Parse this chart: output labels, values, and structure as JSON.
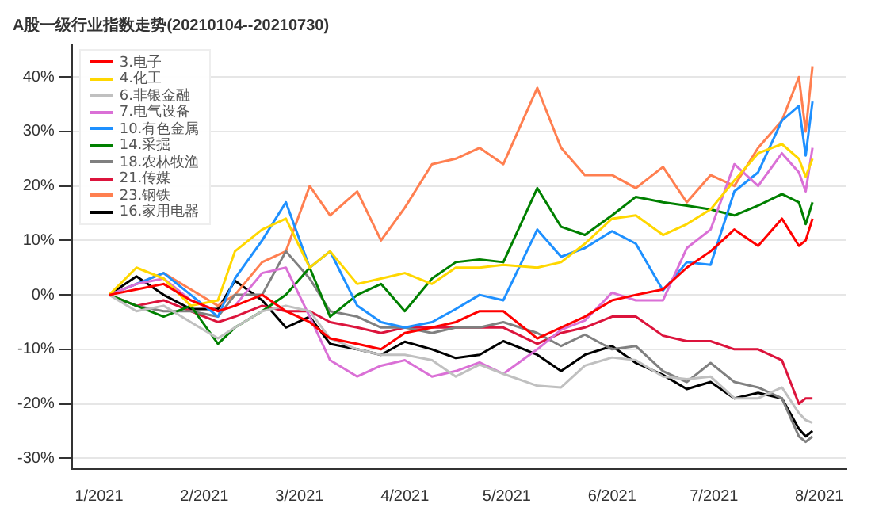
{
  "chart_data": {
    "type": "line",
    "title": "A股一级行业指数走势(20210104--20210730)",
    "x": [
      "2021-01-04",
      "2021-01-12",
      "2021-01-20",
      "2021-01-28",
      "2021-02-05",
      "2021-02-10",
      "2021-02-18",
      "2021-02-25",
      "2021-03-04",
      "2021-03-10",
      "2021-03-18",
      "2021-03-25",
      "2021-04-01",
      "2021-04-09",
      "2021-04-16",
      "2021-04-23",
      "2021-04-30",
      "2021-05-10",
      "2021-05-17",
      "2021-05-24",
      "2021-06-01",
      "2021-06-08",
      "2021-06-16",
      "2021-06-23",
      "2021-06-30",
      "2021-07-07",
      "2021-07-14",
      "2021-07-21",
      "2021-07-26",
      "2021-07-28",
      "2021-07-30"
    ],
    "series": [
      {
        "name": "3.电子",
        "color": "#ff0000",
        "values": [
          0,
          1,
          2,
          -1,
          -3,
          -2,
          0,
          -3,
          -5,
          -8,
          -9,
          -10,
          -7,
          -6,
          -5,
          -3,
          -3,
          -8,
          -6,
          -4,
          -1,
          0,
          1,
          5,
          8,
          12,
          9,
          14,
          9,
          10,
          14
        ]
      },
      {
        "name": "4.化工",
        "color": "#ffd700",
        "values": [
          0,
          5,
          3,
          -2,
          -1,
          8,
          12,
          14,
          5,
          8,
          2,
          3,
          4,
          2,
          5,
          5,
          5.5,
          5,
          6,
          9.4,
          14,
          14.6,
          11,
          13,
          15.7,
          21,
          26,
          27.7,
          25,
          21.7,
          25
        ]
      },
      {
        "name": "6.非银金融",
        "color": "#c0c0c0",
        "values": [
          0,
          -3,
          -2,
          -5,
          -8,
          -6,
          -3,
          -2,
          -3,
          -8,
          -10,
          -11,
          -11,
          -12,
          -15,
          -12.8,
          -14.5,
          -16.7,
          -17,
          -13,
          -11.5,
          -12,
          -15,
          -15.5,
          -15,
          -19,
          -19,
          -17,
          -21.7,
          -23,
          -23.5
        ]
      },
      {
        "name": "7.电气设备",
        "color": "#da70d6",
        "values": [
          0,
          2,
          3,
          -1,
          -3,
          -2,
          4,
          5,
          -4,
          -12,
          -15,
          -13,
          -12,
          -15,
          -14,
          -12.4,
          -14.5,
          -10,
          -6.4,
          -4.7,
          0.4,
          -1,
          -1,
          8.6,
          12,
          24,
          20,
          26,
          22.5,
          19,
          27
        ]
      },
      {
        "name": "10.有色金属",
        "color": "#1e90ff",
        "values": [
          0,
          2,
          4,
          0,
          -4,
          3,
          10,
          17,
          5,
          8,
          -2,
          -5,
          -6,
          -5,
          -2.6,
          0,
          -1,
          12,
          7,
          8.6,
          11.7,
          9.4,
          0.8,
          6,
          5.5,
          19,
          22.5,
          32,
          34.7,
          25.6,
          35.5
        ]
      },
      {
        "name": "14.采掘",
        "color": "#008000",
        "values": [
          0,
          -2,
          -4,
          -2,
          -9,
          -6,
          -3,
          0,
          5,
          -4,
          0,
          2,
          -3,
          3,
          6,
          6.5,
          6,
          19.6,
          12.5,
          11,
          14.6,
          18,
          17,
          16.4,
          15.7,
          14.6,
          16.4,
          18.5,
          17,
          13,
          17
        ]
      },
      {
        "name": "18.农林牧渔",
        "color": "#808080",
        "values": [
          0,
          -2,
          -3,
          -3,
          -4,
          0,
          0,
          8,
          3,
          -3,
          -4,
          -6,
          -6,
          -7,
          -6,
          -6,
          -5,
          -7,
          -9.4,
          -7.3,
          -10,
          -9.4,
          -14,
          -16,
          -12.5,
          -16,
          -17,
          -19,
          -26,
          -27,
          -26
        ]
      },
      {
        "name": "21.传媒",
        "color": "#dc143c",
        "values": [
          0,
          -2,
          -1,
          -3,
          -5,
          -4,
          -2,
          -3,
          -3,
          -5,
          -6,
          -7,
          -6,
          -6,
          -6,
          -6,
          -6,
          -9,
          -7,
          -6,
          -4,
          -4,
          -7.5,
          -8.5,
          -8.5,
          -10,
          -10,
          -12,
          -20,
          -19,
          -19
        ]
      },
      {
        "name": "23.钢铁",
        "color": "#ff7f50",
        "values": [
          0,
          2,
          4,
          1,
          -2,
          0,
          6,
          8,
          20,
          14.6,
          19,
          10,
          16,
          24,
          25,
          27,
          24,
          38,
          27,
          22,
          22,
          19.6,
          23.5,
          17,
          22,
          20,
          27,
          32,
          40,
          30,
          42
        ]
      },
      {
        "name": "16.家用电器",
        "color": "#000000",
        "values": [
          0,
          3.4,
          0,
          -2.6,
          -2.6,
          2.6,
          -1,
          -6,
          -4,
          -9,
          -10,
          -11,
          -8.6,
          -10,
          -11.6,
          -11,
          -8.5,
          -11,
          -14,
          -11,
          -9.4,
          -12.5,
          -14.7,
          -17.3,
          -16,
          -19,
          -18,
          -19,
          -24.6,
          -26,
          -25
        ]
      }
    ],
    "xlim": [
      "2020-12-24",
      "2021-08-09"
    ],
    "xticks": [
      {
        "value": "2021-01-01",
        "label": "1/2021"
      },
      {
        "value": "2021-02-01",
        "label": "2/2021"
      },
      {
        "value": "2021-03-01",
        "label": "3/2021"
      },
      {
        "value": "2021-04-01",
        "label": "4/2021"
      },
      {
        "value": "2021-05-01",
        "label": "5/2021"
      },
      {
        "value": "2021-06-01",
        "label": "6/2021"
      },
      {
        "value": "2021-07-01",
        "label": "7/2021"
      },
      {
        "value": "2021-08-01",
        "label": "8/2021"
      }
    ],
    "ylim": [
      -32,
      46
    ],
    "yticks": [
      {
        "value": -30,
        "label": "-30%"
      },
      {
        "value": -20,
        "label": "-20%"
      },
      {
        "value": -10,
        "label": "-10%"
      },
      {
        "value": 0,
        "label": "0%"
      },
      {
        "value": 10,
        "label": "10%"
      },
      {
        "value": 20,
        "label": "20%"
      },
      {
        "value": 30,
        "label": "30%"
      },
      {
        "value": 40,
        "label": "40%"
      }
    ],
    "grid": "y",
    "legend": "top left",
    "marker": "none",
    "line_style": "solid"
  }
}
